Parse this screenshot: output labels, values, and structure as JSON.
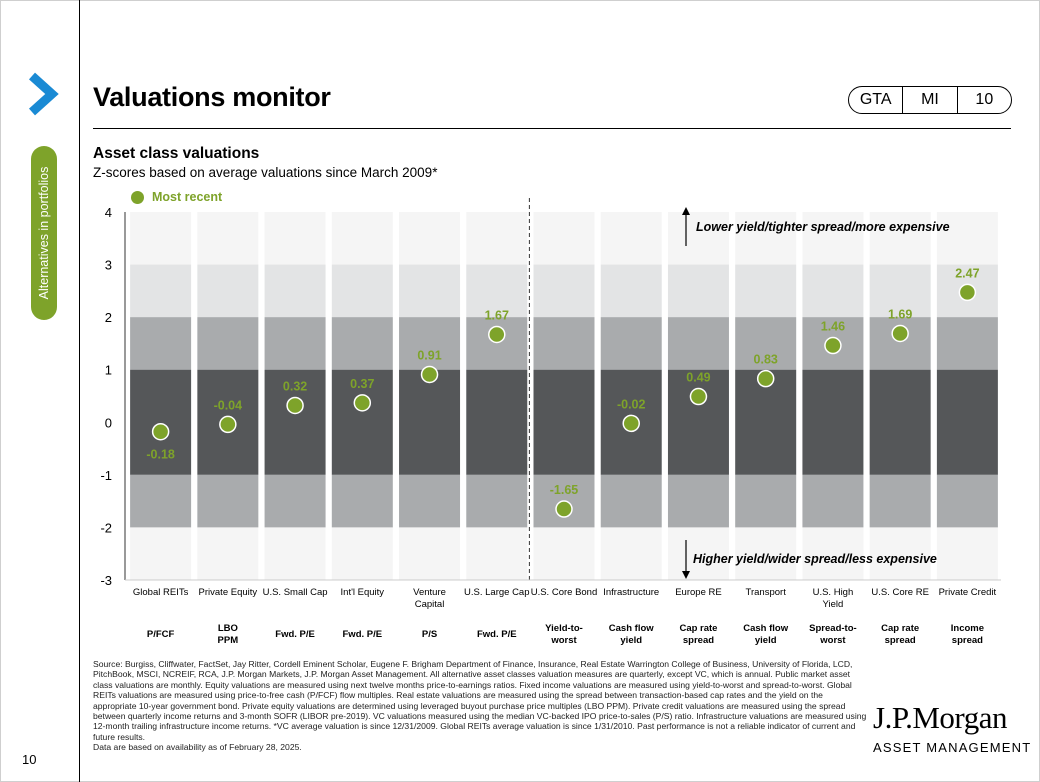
{
  "header": {
    "title": "Valuations monitor",
    "tags": [
      "GTA",
      "MI",
      "10"
    ],
    "side_tab": "Alternatives in portfolios",
    "page_number": "10"
  },
  "chart_data": {
    "type": "scatter",
    "title": "Asset class valuations",
    "subtitle": "Z-scores based on average valuations since March 2009*",
    "legend": "Most recent",
    "y_range": [
      -3,
      4
    ],
    "y_ticks": [
      "4",
      "3",
      "2",
      "1",
      "0",
      "-1",
      "-2",
      "-3"
    ],
    "categories": [
      {
        "name": "Global REITs",
        "metric": "P/FCF",
        "value": -0.18,
        "label": "-0.18"
      },
      {
        "name": "Private Equity",
        "metric": "LBO PPM",
        "value": -0.04,
        "label": "-0.04"
      },
      {
        "name": "U.S. Small Cap",
        "metric": "Fwd. P/E",
        "value": 0.32,
        "label": "0.32"
      },
      {
        "name": "Int'l Equity",
        "metric": "Fwd. P/E",
        "value": 0.37,
        "label": "0.37"
      },
      {
        "name": "Venture Capital",
        "metric": "P/S",
        "value": 0.91,
        "label": "0.91"
      },
      {
        "name": "U.S. Large Cap",
        "metric": "Fwd. P/E",
        "value": 1.67,
        "label": "1.67"
      },
      {
        "name": "U.S. Core Bond",
        "metric": "Yield-to-worst",
        "value": -1.65,
        "label": "-1.65"
      },
      {
        "name": "Infrastructure",
        "metric": "Cash flow yield",
        "value": -0.02,
        "label": "-0.02"
      },
      {
        "name": "Europe RE",
        "metric": "Cap rate spread",
        "value": 0.49,
        "label": "0.49"
      },
      {
        "name": "Transport",
        "metric": "Cash flow yield",
        "value": 0.83,
        "label": "0.83"
      },
      {
        "name": "U.S. High Yield",
        "metric": "Spread-to-worst",
        "value": 1.46,
        "label": "1.46"
      },
      {
        "name": "U.S. Core RE",
        "metric": "Cap rate spread",
        "value": 1.69,
        "label": "1.69"
      },
      {
        "name": "Private Credit",
        "metric": "Income spread",
        "value": 2.47,
        "label": "2.47"
      }
    ],
    "annotations": {
      "top": "Lower yield/tighter spread/more expensive",
      "bottom": "Higher yield/wider spread/less expensive"
    },
    "colors": {
      "band_inner": "#555759",
      "band_mid": "#a9abad",
      "band_outer": "#e3e4e5",
      "band_edge": "#f5f5f5",
      "point": "#7ea32a"
    }
  },
  "footnote": "Source: Burgiss, Cliffwater, FactSet, Jay Ritter, Cordell Eminent Scholar, Eugene F. Brigham Department of Finance, Insurance, Real Estate Warrington College of Business, University of Florida, LCD, PitchBook, MSCI, NCREIF, RCA, J.P. Morgan Markets, J.P. Morgan Asset Management. All alternative asset classes valuation measures are quarterly, except VC, which is annual. Public market asset class valuations are monthly. Equity valuations are measured using next twelve months price-to-earnings ratios. Fixed income valuations are measured using yield-to-worst and spread-to-worst. Global REITs valuations are measured using price-to-free cash (P/FCF) flow multiples. Real estate valuations are measured using the spread between transaction-based cap rates and the yield on the appropriate 10-year government bond. Private equity valuations are determined using leveraged buyout purchase price multiples (LBO PPM). Private credit valuations are measured using the spread between quarterly income returns and 3-month SOFR (LIBOR pre-2019). VC valuations measured using the median VC-backed IPO price-to-sales (P/S) ratio. Infrastructure valuations are measured using 12-month trailing infrastructure income returns. *VC average valuation is since 12/31/2009. Global REITs average valuation is since 1/31/2010. Past performance is not a reliable indicator of current and future results.",
  "footnote_date": "Data are based on availability as of February 28, 2025.",
  "logo": {
    "brand": "J.P.Morgan",
    "sub": "ASSET MANAGEMENT"
  }
}
